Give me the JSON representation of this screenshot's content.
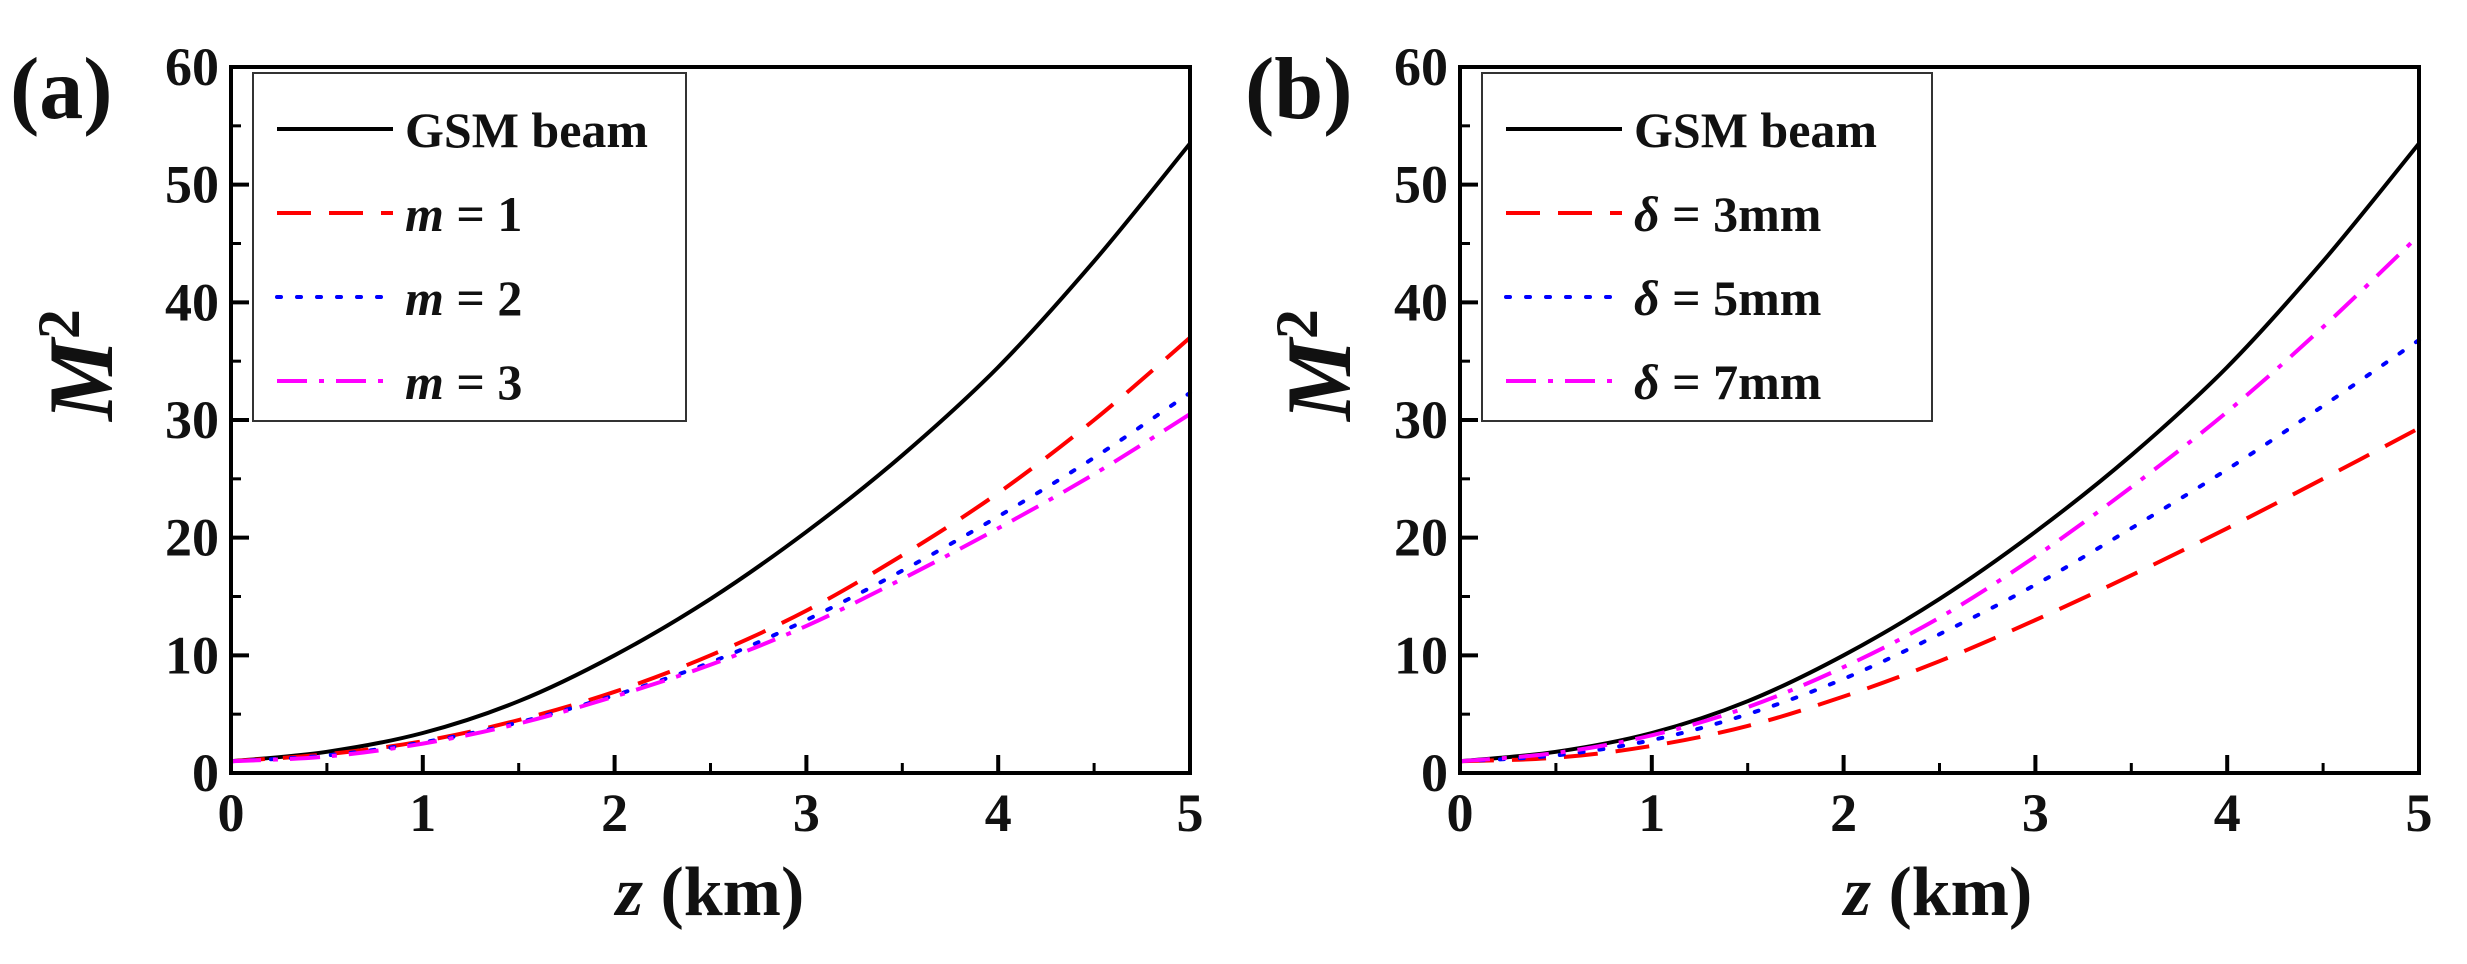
{
  "chart_data": [
    {
      "type": "line",
      "panel_label": "(a)",
      "xlabel": "z (km)",
      "xlabel_var": "z",
      "xlabel_unit": " (km)",
      "ylabel": "M²",
      "ylabel_var": "M",
      "ylabel_sup": "2",
      "xlim": [
        0,
        5
      ],
      "ylim": [
        0,
        60
      ],
      "xticks": [
        0,
        1,
        2,
        3,
        4,
        5
      ],
      "yticks": [
        0,
        10,
        20,
        30,
        40,
        50,
        60
      ],
      "legend_position": "top-left",
      "x": [
        0,
        0.5,
        1,
        1.5,
        2,
        2.5,
        3,
        3.5,
        4,
        4.5,
        5
      ],
      "series": [
        {
          "name": "GSM beam",
          "label_var": "",
          "label_rest": "GSM beam",
          "color": "#000000",
          "dash": "solid",
          "values": [
            1,
            1.8,
            3.4,
            6.1,
            10.0,
            14.8,
            20.5,
            27.0,
            34.5,
            43.5,
            53.5
          ]
        },
        {
          "name": "m = 1",
          "label_var": "m",
          "label_rest": " = 1",
          "color": "#ff0000",
          "dash": "dashed",
          "values": [
            1,
            1.6,
            2.7,
            4.5,
            6.9,
            10.0,
            13.8,
            18.5,
            23.8,
            30.0,
            37.0
          ]
        },
        {
          "name": "m = 2",
          "label_var": "m",
          "label_rest": " = 2",
          "color": "#0000ff",
          "dash": "dotted",
          "values": [
            1,
            1.5,
            2.6,
            4.3,
            6.6,
            9.4,
            13.0,
            17.2,
            21.8,
            26.8,
            32.3
          ]
        },
        {
          "name": "m = 3",
          "label_var": "m",
          "label_rest": " = 3",
          "color": "#ff00ff",
          "dash": "dashdot",
          "values": [
            1,
            1.4,
            2.5,
            4.2,
            6.5,
            9.2,
            12.5,
            16.5,
            20.8,
            25.4,
            30.5
          ]
        }
      ]
    },
    {
      "type": "line",
      "panel_label": "(b)",
      "xlabel": "z (km)",
      "xlabel_var": "z",
      "xlabel_unit": " (km)",
      "ylabel": "M²",
      "ylabel_var": "M",
      "ylabel_sup": "2",
      "xlim": [
        0,
        5
      ],
      "ylim": [
        0,
        60
      ],
      "xticks": [
        0,
        1,
        2,
        3,
        4,
        5
      ],
      "yticks": [
        0,
        10,
        20,
        30,
        40,
        50,
        60
      ],
      "legend_position": "top-left",
      "x": [
        0,
        0.5,
        1,
        1.5,
        2,
        2.5,
        3,
        3.5,
        4,
        4.5,
        5
      ],
      "series": [
        {
          "name": "GSM beam",
          "label_var": "",
          "label_rest": "GSM beam",
          "color": "#000000",
          "dash": "solid",
          "values": [
            1,
            1.8,
            3.4,
            6.1,
            10.0,
            14.8,
            20.5,
            27.0,
            34.5,
            43.5,
            53.5
          ]
        },
        {
          "name": "δ = 3mm",
          "label_var": "δ",
          "label_rest": " = 3mm",
          "color": "#ff0000",
          "dash": "dashed",
          "values": [
            1,
            1.3,
            2.3,
            4.0,
            6.5,
            9.5,
            13.0,
            16.8,
            20.8,
            25.0,
            29.3
          ]
        },
        {
          "name": "δ = 5mm",
          "label_var": "δ",
          "label_rest": " = 5mm",
          "color": "#0000ff",
          "dash": "dotted",
          "values": [
            1,
            1.5,
            2.8,
            5.0,
            8.0,
            11.8,
            16.0,
            20.8,
            25.8,
            31.2,
            36.8
          ]
        },
        {
          "name": "δ = 7mm",
          "label_var": "δ",
          "label_rest": " = 7mm",
          "color": "#ff00ff",
          "dash": "dashdot",
          "values": [
            1,
            1.7,
            3.2,
            5.6,
            9.0,
            13.2,
            18.4,
            24.3,
            30.7,
            37.9,
            45.7
          ]
        }
      ]
    }
  ]
}
